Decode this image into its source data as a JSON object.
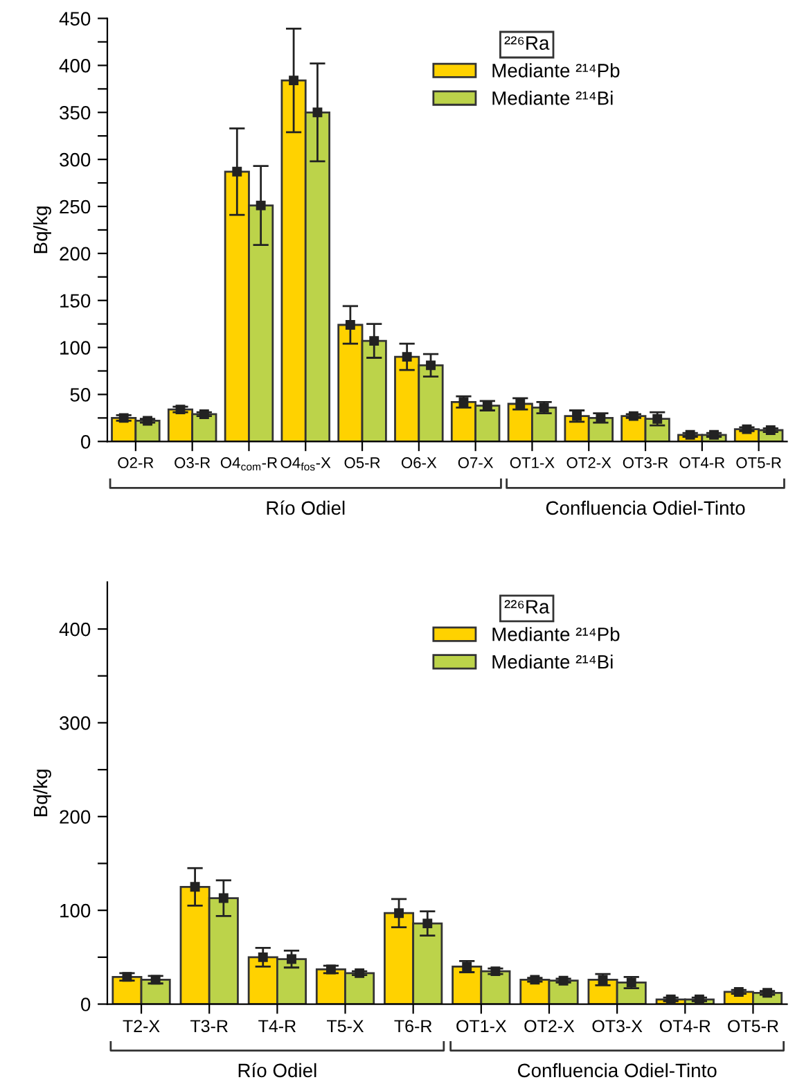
{
  "chart_data": [
    {
      "type": "bar",
      "categories": [
        "O2-R",
        "O3-R",
        "O4$_{com}$-R",
        "O4$_{fos}$-X",
        "O5-R",
        "O6-X",
        "O7-X",
        "OT1-X",
        "OT2-X",
        "OT3-R",
        "OT4-R",
        "OT5-R"
      ],
      "ylabel": "Bq/kg",
      "legend_title": "²²⁶Ra",
      "legend": "top right",
      "marker": "square",
      "ylim": [
        0,
        450
      ],
      "yticks": [
        0,
        {
          "value": 25,
          "label": null
        },
        50,
        {
          "value": 75,
          "label": null
        },
        100,
        {
          "value": 125,
          "label": null
        },
        150,
        {
          "value": 175,
          "label": null
        },
        200,
        {
          "value": 225,
          "label": null
        },
        250,
        {
          "value": 275,
          "label": null
        },
        300,
        {
          "value": 325,
          "label": null
        },
        350,
        {
          "value": 375,
          "label": null
        },
        400,
        {
          "value": 425,
          "label": null
        },
        450
      ],
      "series": [
        {
          "name": "Mediante ²¹⁴Pb",
          "color": "#ffd200",
          "values": [
            25,
            34,
            287,
            384,
            124,
            90,
            42,
            40,
            27,
            27,
            7,
            13
          ],
          "errors": [
            3,
            3,
            46,
            55,
            20,
            14,
            6,
            6,
            6,
            2,
            2,
            2
          ]
        },
        {
          "name": "Mediante ²¹⁴Bi",
          "color": "#bcd34a",
          "values": [
            22,
            29,
            251,
            350,
            107,
            81,
            38,
            36,
            25,
            24,
            7,
            12
          ],
          "errors": [
            2,
            2,
            42,
            52,
            18,
            12,
            5,
            6,
            5,
            7,
            2,
            2
          ]
        }
      ],
      "annotations": [
        "Río Odiel",
        "Confluencia Odiel-Tinto"
      ]
    },
    {
      "type": "bar",
      "categories": [
        "T2-X",
        "T3-R",
        "T4-R",
        "T5-X",
        "T6-R",
        "OT1-X",
        "OT2-X",
        "OT3-X",
        "OT4-R",
        "OT5-R"
      ],
      "ylabel": "Bq/kg",
      "legend_title": "²²⁶Ra",
      "legend": "top right",
      "marker": "square",
      "ylim": [
        0,
        450
      ],
      "yticks": [
        0,
        {
          "value": 50,
          "label": null
        },
        100,
        {
          "value": 150,
          "label": null
        },
        200,
        {
          "value": 250,
          "label": null
        },
        300,
        {
          "value": 350,
          "label": null
        },
        400
      ],
      "series": [
        {
          "name": "Mediante ²¹⁴Pb",
          "color": "#ffd200",
          "values": [
            29,
            125,
            50,
            37,
            97,
            40,
            26,
            26,
            5,
            13
          ],
          "errors": [
            4,
            20,
            10,
            4,
            15,
            6,
            2,
            6,
            2,
            2
          ]
        },
        {
          "name": "Mediante ²¹⁴Bi",
          "color": "#bcd34a",
          "values": [
            26,
            113,
            48,
            33,
            86,
            35,
            25,
            23,
            5,
            12
          ],
          "errors": [
            4,
            19,
            9,
            2,
            13,
            3,
            2,
            6,
            2,
            2
          ]
        }
      ],
      "annotations": [
        "Río Odiel",
        "Confluencia Odiel-Tinto"
      ]
    }
  ]
}
